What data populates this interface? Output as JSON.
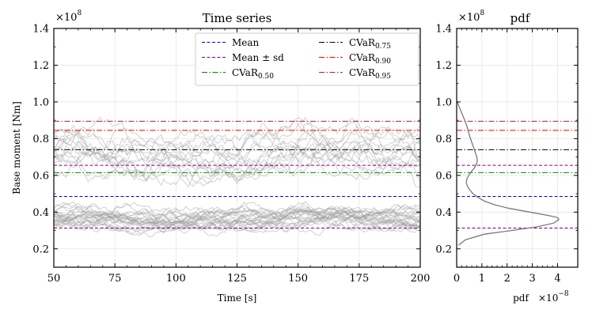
{
  "chart_data": [
    {
      "type": "line",
      "title": "Time series",
      "xlabel": "Time [s]",
      "ylabel": "Base moment [Nm]",
      "y_multiplier": "×10",
      "y_exponent": "8",
      "xlim": [
        50,
        200
      ],
      "ylim": [
        0.1,
        1.4
      ],
      "xticks": [
        50,
        75,
        100,
        125,
        150,
        175,
        200
      ],
      "xtick_labels": [
        "50",
        "75",
        "100",
        "125",
        "150",
        "175",
        "200"
      ],
      "yticks": [
        0.2,
        0.4,
        0.6,
        0.8,
        1.0,
        1.2,
        1.4
      ],
      "ytick_labels": [
        "0.2",
        "0.4",
        "0.6",
        "0.8",
        "1.0",
        "1.2",
        "1.4"
      ],
      "grid": true,
      "legend_position": "top-right",
      "legend": [
        {
          "key": "mean",
          "label": "Mean",
          "sub": ""
        },
        {
          "key": "cvar75",
          "label": "CVaR",
          "sub": "0.75"
        },
        {
          "key": "meansd",
          "label": "Mean ± sd",
          "sub": ""
        },
        {
          "key": "cvar90",
          "label": "CVaR",
          "sub": "0.90"
        },
        {
          "key": "cvar50",
          "label": "CVaR",
          "sub": "0.50"
        },
        {
          "key": "cvar95",
          "label": "CVaR",
          "sub": "0.95"
        }
      ],
      "reference_lines": [
        {
          "key": "mean",
          "y": 0.485,
          "color": "#0000ee",
          "dash": "dashed"
        },
        {
          "key": "meansd",
          "y": 0.655,
          "color": "#800080",
          "dash": "dashed"
        },
        {
          "key": "meansd",
          "y": 0.313,
          "color": "#800080",
          "dash": "dashed"
        },
        {
          "key": "cvar50",
          "y": 0.615,
          "color": "#008800",
          "dash": "dashdot"
        },
        {
          "key": "cvar75",
          "y": 0.74,
          "color": "#000000",
          "dash": "dashdot"
        },
        {
          "key": "cvar90",
          "y": 0.845,
          "color": "#ee0000",
          "dash": "dashdot"
        },
        {
          "key": "cvar95",
          "y": 0.895,
          "color": "#b22222",
          "dash": "dashdot"
        }
      ],
      "sample_series": {
        "count": 40,
        "color": "#9e9e9e",
        "opacity": 0.4,
        "x_start": 50,
        "x_end": 200,
        "x_step": 1,
        "low_regime_mean": 0.36,
        "high_regime_mean": 0.72,
        "high_regime_fraction": 0.3
      }
    },
    {
      "type": "line",
      "title": "pdf",
      "xlabel": "pdf",
      "x_multiplier": "×10",
      "x_exponent": "−8",
      "y_multiplier": "×10",
      "y_exponent": "8",
      "xlim": [
        0,
        4.8
      ],
      "ylim": [
        0.1,
        1.4
      ],
      "xticks": [
        0,
        1,
        2,
        3,
        4
      ],
      "xtick_labels": [
        "0",
        "1",
        "2",
        "3",
        "4"
      ],
      "yticks": [
        0.2,
        0.4,
        0.6,
        0.8,
        1.0,
        1.2,
        1.4
      ],
      "ytick_labels": [
        "0.2",
        "0.4",
        "0.6",
        "0.8",
        "1.0",
        "1.2",
        "1.4"
      ],
      "grid": true,
      "pdf_color": "#7a7a7a",
      "pdf_curve": {
        "y": [
          0.22,
          0.25,
          0.28,
          0.3,
          0.32,
          0.34,
          0.36,
          0.37,
          0.38,
          0.4,
          0.42,
          0.44,
          0.46,
          0.48,
          0.5,
          0.52,
          0.54,
          0.56,
          0.58,
          0.6,
          0.62,
          0.64,
          0.66,
          0.68,
          0.7,
          0.72,
          0.74,
          0.76,
          0.78,
          0.8,
          0.82,
          0.84,
          0.86,
          0.88,
          0.9,
          0.92,
          0.94,
          0.96,
          0.98,
          1.0
        ],
        "pdf": [
          0.08,
          0.35,
          1.1,
          2.2,
          3.2,
          3.85,
          4.05,
          4.0,
          3.7,
          2.9,
          2.1,
          1.5,
          1.1,
          0.85,
          0.65,
          0.52,
          0.43,
          0.38,
          0.4,
          0.48,
          0.58,
          0.7,
          0.78,
          0.82,
          0.8,
          0.75,
          0.7,
          0.65,
          0.6,
          0.55,
          0.5,
          0.46,
          0.42,
          0.38,
          0.32,
          0.26,
          0.2,
          0.14,
          0.08,
          0.03
        ]
      },
      "reference_lines_from": 0
    }
  ]
}
